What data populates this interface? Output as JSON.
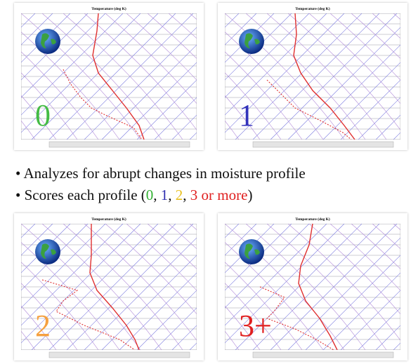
{
  "panels": [
    {
      "title": "Temperature (deg K)",
      "score": "0"
    },
    {
      "title": "Temperature (deg K)",
      "score": "1"
    },
    {
      "title": "Temperature (deg K)",
      "score": "2"
    },
    {
      "title": "Temperature (deg K)",
      "score": "3+"
    }
  ],
  "bullets": [
    [
      "Analyzes for abrupt changes in moisture profile"
    ],
    [
      "Scores each profile (",
      "0",
      ", ",
      "1",
      ", ",
      "2",
      ", ",
      "3 or more",
      ")"
    ]
  ]
}
